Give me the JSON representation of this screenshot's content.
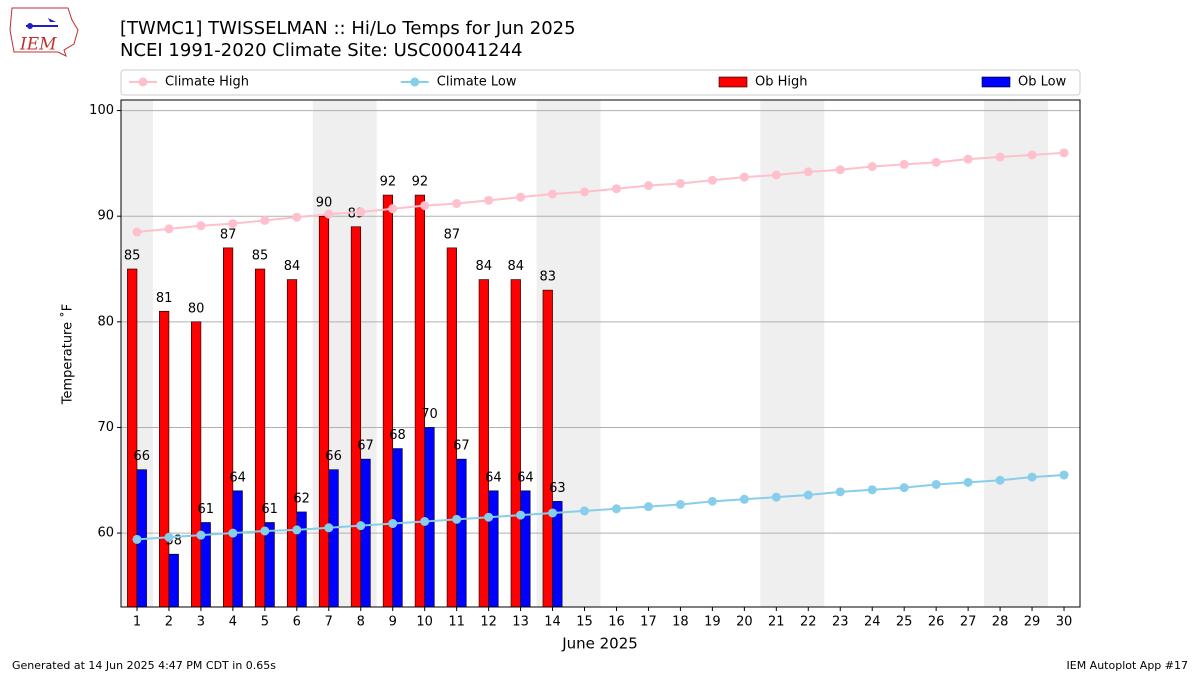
{
  "chart_data": {
    "type": "bar_line",
    "title": "[TWMC1] TWISSELMAN :: Hi/Lo Temps for Jun 2025",
    "subtitle": "NCEI 1991-2020 Climate Site: USC00041244",
    "x_label": "June 2025",
    "y_label": "Temperature ˚F",
    "footer_left": "Generated at 14 Jun 2025 4:47 PM CDT in 0.65s",
    "footer_right": "IEM Autoplot App #17",
    "logo_text": "IEM",
    "x": [
      1,
      2,
      3,
      4,
      5,
      6,
      7,
      8,
      9,
      10,
      11,
      12,
      13,
      14,
      15,
      16,
      17,
      18,
      19,
      20,
      21,
      22,
      23,
      24,
      25,
      26,
      27,
      28,
      29,
      30
    ],
    "xlim": [
      0.5,
      30.5
    ],
    "xticks": [
      1,
      2,
      3,
      4,
      5,
      6,
      7,
      8,
      9,
      10,
      11,
      12,
      13,
      14,
      15,
      16,
      17,
      18,
      19,
      20,
      21,
      22,
      23,
      24,
      25,
      26,
      27,
      28,
      29,
      30
    ],
    "ylim": [
      53,
      101
    ],
    "yticks": [
      60,
      70,
      80,
      90,
      100
    ],
    "grid": true,
    "shaded_x_ranges": [
      [
        0.5,
        1.5
      ],
      [
        6.5,
        8.5
      ],
      [
        13.5,
        15.5
      ],
      [
        20.5,
        22.5
      ],
      [
        27.5,
        29.5
      ]
    ],
    "series": [
      {
        "name": "Climate High",
        "type": "line",
        "color": "#ffc0cb",
        "values": [
          88.5,
          88.8,
          89.1,
          89.3,
          89.6,
          89.9,
          90.2,
          90.4,
          90.7,
          91.0,
          91.2,
          91.5,
          91.8,
          92.1,
          92.3,
          92.6,
          92.9,
          93.1,
          93.4,
          93.7,
          93.9,
          94.2,
          94.4,
          94.7,
          94.9,
          95.1,
          95.4,
          95.6,
          95.8,
          96.0
        ]
      },
      {
        "name": "Climate Low",
        "type": "line",
        "color": "#87ceeb",
        "values": [
          59.4,
          59.6,
          59.8,
          60.0,
          60.2,
          60.3,
          60.5,
          60.7,
          60.9,
          61.1,
          61.3,
          61.5,
          61.7,
          61.9,
          62.1,
          62.3,
          62.5,
          62.7,
          63.0,
          63.2,
          63.4,
          63.6,
          63.9,
          64.1,
          64.3,
          64.6,
          64.8,
          65.0,
          65.3,
          65.5
        ]
      },
      {
        "name": "Ob High",
        "type": "bar",
        "color": "#ff0000",
        "values": [
          85,
          81,
          80,
          87,
          85,
          84,
          90,
          89,
          92,
          92,
          87,
          84,
          84,
          83,
          null,
          null,
          null,
          null,
          null,
          null,
          null,
          null,
          null,
          null,
          null,
          null,
          null,
          null,
          null,
          null
        ]
      },
      {
        "name": "Ob Low",
        "type": "bar",
        "color": "#0000ff",
        "values": [
          66,
          58,
          61,
          64,
          61,
          62,
          66,
          67,
          68,
          70,
          67,
          64,
          64,
          63,
          null,
          null,
          null,
          null,
          null,
          null,
          null,
          null,
          null,
          null,
          null,
          null,
          null,
          null,
          null,
          null
        ]
      }
    ]
  }
}
